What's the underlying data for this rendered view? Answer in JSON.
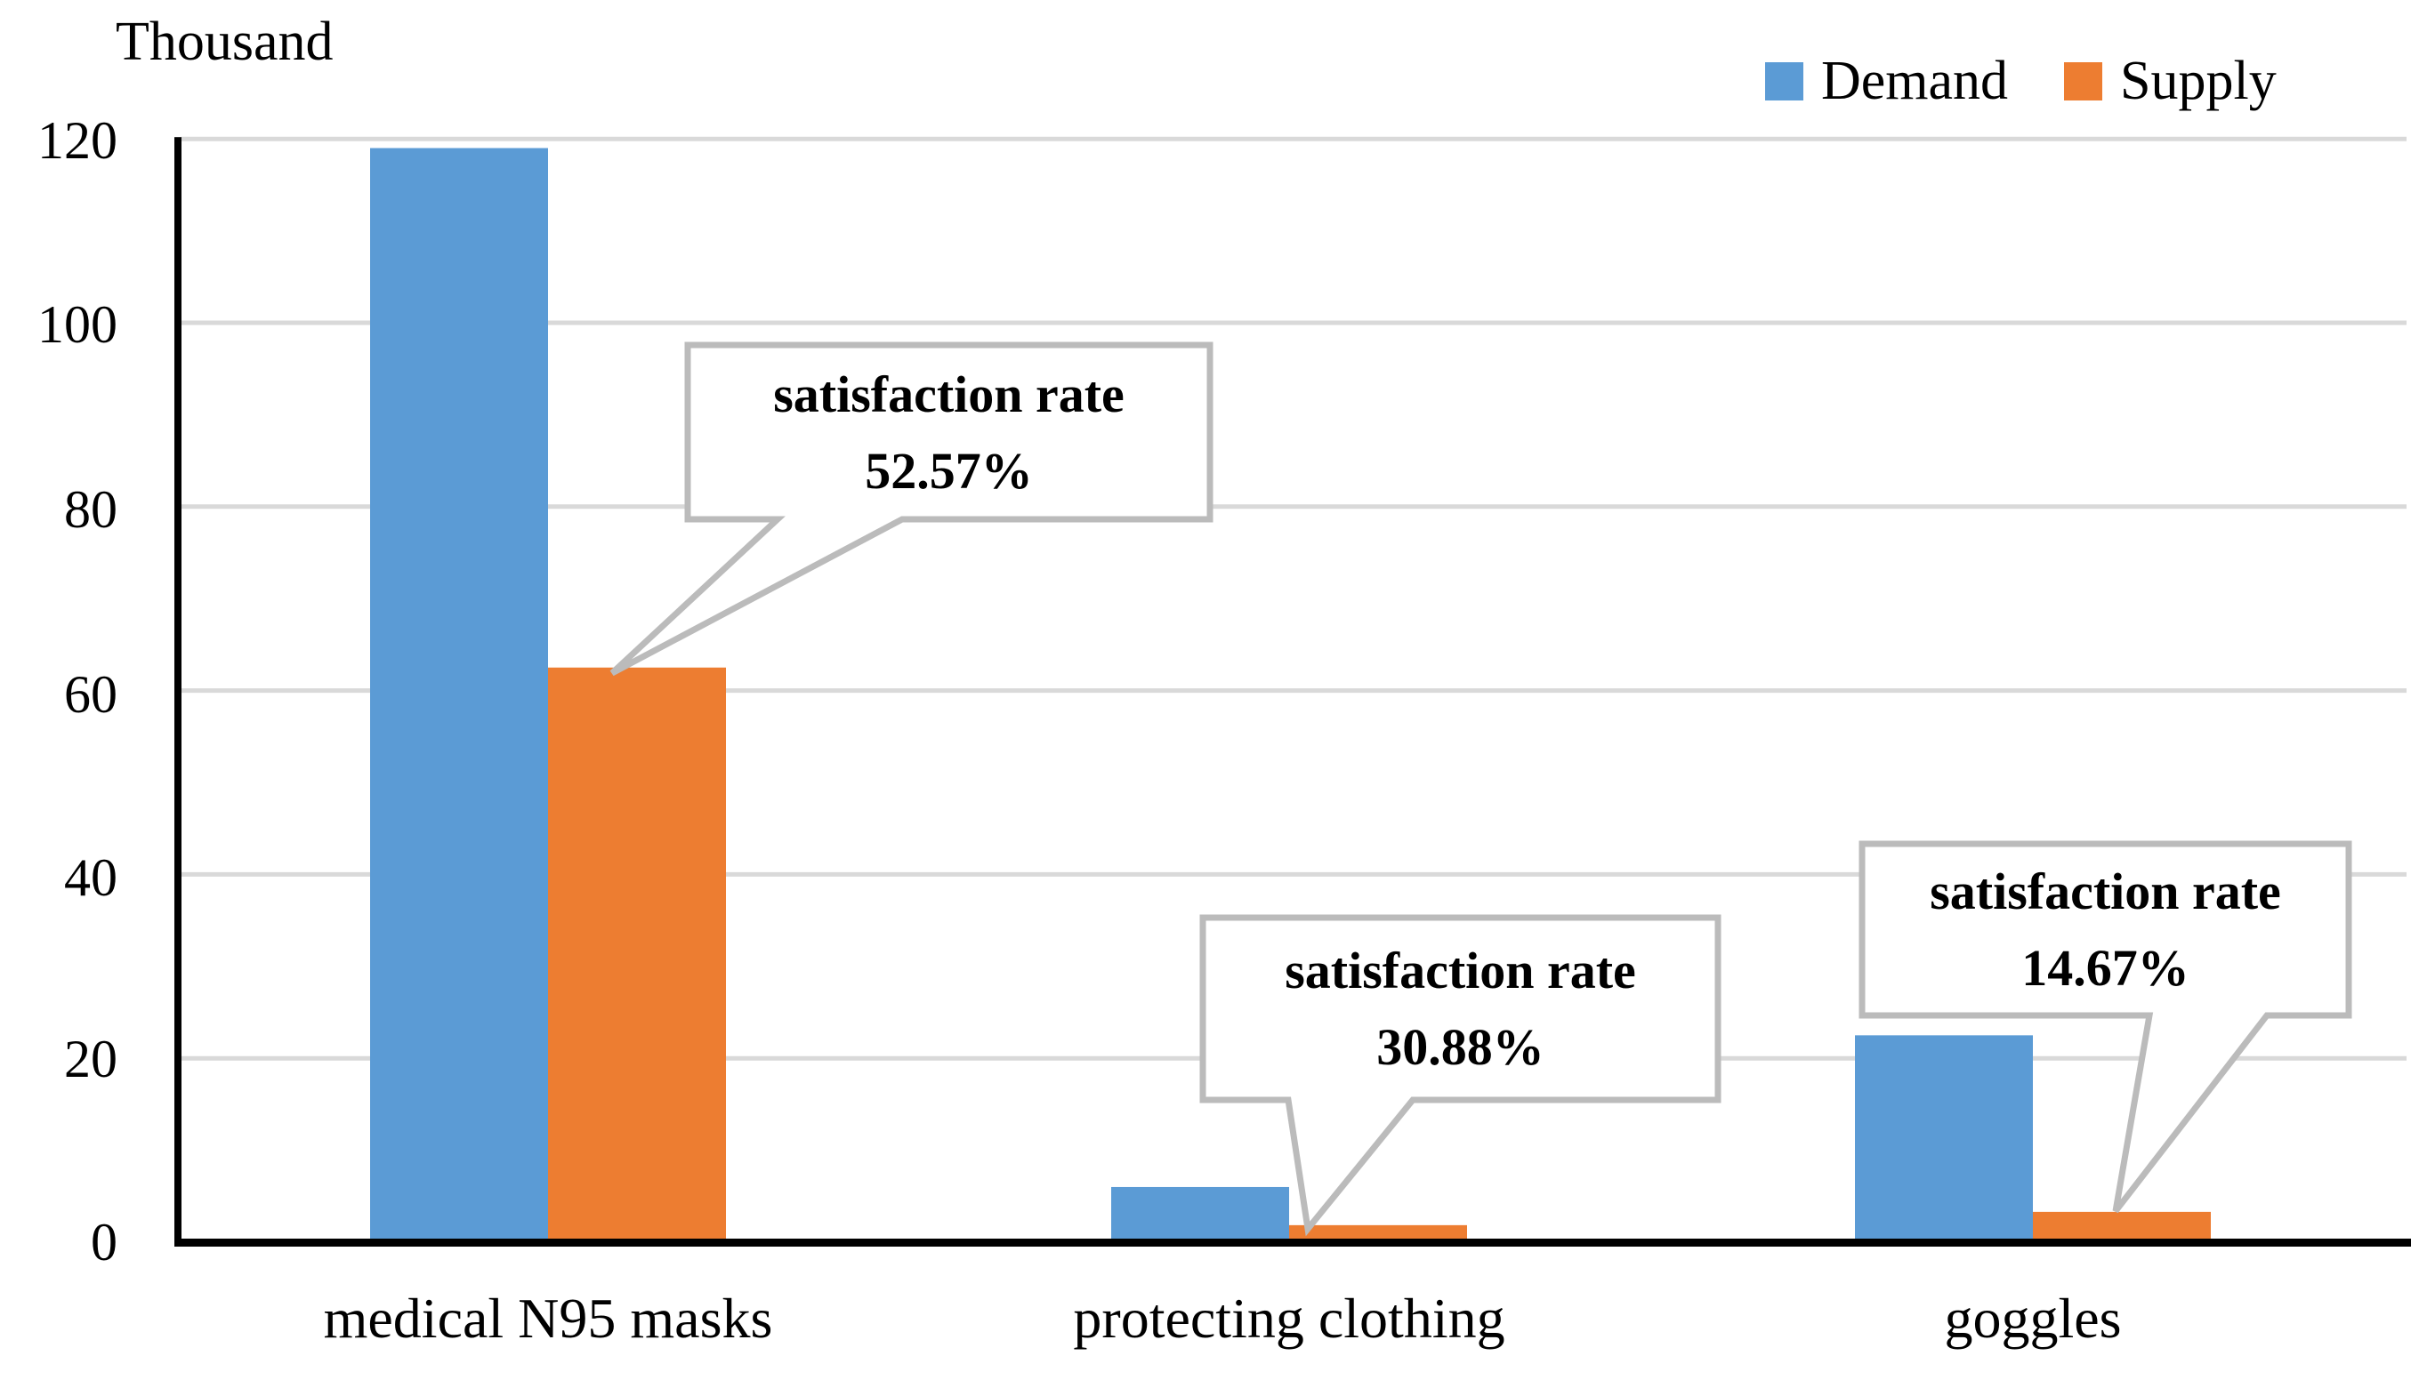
{
  "chart_data": {
    "type": "bar",
    "unit_label": "Thousand",
    "categories": [
      "medical N95 masks",
      "protecting clothing",
      "goggles"
    ],
    "series": [
      {
        "name": "Demand",
        "color": "#5B9BD5",
        "values": [
          119,
          6,
          22.5
        ]
      },
      {
        "name": "Supply",
        "color": "#ED7D31",
        "values": [
          62.5,
          1.85,
          3.3
        ]
      }
    ],
    "ylim": [
      0,
      120
    ],
    "yticks": [
      "120",
      "100",
      "80",
      "60",
      "40",
      "20",
      "0"
    ],
    "grid": true,
    "gridline_color": "#D9D9D9",
    "axis_color": "#000000",
    "legend_position": "top-right",
    "annotations": [
      {
        "line1": "satisfaction rate",
        "line2": "52.57%",
        "points_to": "medical N95 masks Supply bar"
      },
      {
        "line1": "satisfaction rate",
        "line2": "30.88%",
        "points_to": "protecting clothing Supply bar"
      },
      {
        "line1": "satisfaction rate",
        "line2": "14.67%",
        "points_to": "goggles Supply bar"
      }
    ],
    "callout_border_color": "#BBBBBB"
  }
}
